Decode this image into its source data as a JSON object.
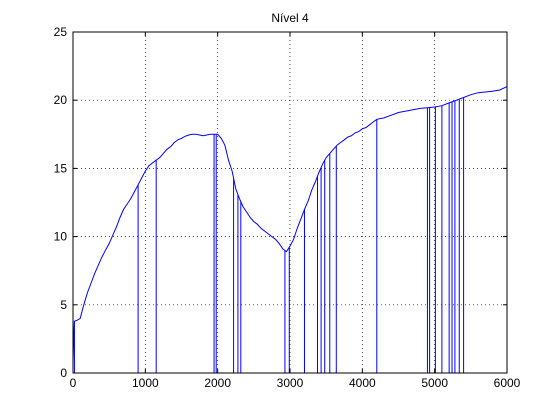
{
  "window": {
    "background": "#ffffff"
  },
  "chart_data": {
    "type": "line",
    "title": "Nível 4",
    "xlabel": "",
    "ylabel": "",
    "xlim": [
      0,
      6000
    ],
    "ylim": [
      0,
      25
    ],
    "xticks": [
      0,
      1000,
      2000,
      3000,
      4000,
      5000,
      6000
    ],
    "yticks": [
      0,
      5,
      10,
      15,
      20,
      25
    ],
    "grid": true,
    "grid_style": "dotted",
    "legend": "none",
    "colors": {
      "line": "#0000ff",
      "axes": "#000000",
      "grid": "#000000"
    },
    "series": [
      {
        "x": [
          0,
          10,
          20,
          50,
          100,
          150,
          200,
          250,
          300,
          350,
          400,
          450,
          500,
          550,
          600,
          650,
          700,
          750,
          800,
          850,
          900,
          950,
          1000,
          1050,
          1100,
          1150,
          1200,
          1250,
          1300,
          1350,
          1400,
          1450,
          1500,
          1550,
          1600,
          1650,
          1700,
          1750,
          1800,
          1850,
          1900,
          1950,
          2000,
          2050,
          2100,
          2150,
          2200,
          2250,
          2300,
          2350,
          2400,
          2450,
          2500,
          2550,
          2600,
          2650,
          2700,
          2750,
          2800,
          2850,
          2900,
          2950,
          3000,
          3050,
          3100,
          3150,
          3200,
          3250,
          3300,
          3350,
          3400,
          3450,
          3500,
          3550,
          3600,
          3650,
          3700,
          3750,
          3800,
          3850,
          3900,
          3950,
          4000,
          4050,
          4100,
          4150,
          4200,
          4300,
          4400,
          4500,
          4600,
          4700,
          4800,
          4900,
          5000,
          5100,
          5200,
          5300,
          5400,
          5500,
          5600,
          5700,
          5800,
          5900,
          6000
        ],
        "y": [
          0.8,
          2.5,
          3.8,
          3.85,
          4.0,
          5.0,
          5.9,
          6.6,
          7.3,
          7.9,
          8.5,
          9.0,
          9.5,
          10.1,
          10.7,
          11.4,
          12.0,
          12.4,
          12.8,
          13.3,
          13.8,
          14.3,
          14.8,
          15.2,
          15.4,
          15.6,
          15.8,
          16.1,
          16.4,
          16.6,
          16.9,
          17.1,
          17.2,
          17.35,
          17.45,
          17.5,
          17.5,
          17.45,
          17.4,
          17.45,
          17.5,
          17.5,
          17.5,
          17.2,
          16.7,
          15.6,
          14.8,
          13.5,
          12.8,
          12.2,
          11.8,
          11.4,
          11.1,
          10.9,
          10.6,
          10.4,
          10.2,
          10.0,
          9.8,
          9.5,
          9.1,
          8.9,
          9.3,
          9.8,
          10.6,
          11.3,
          12.0,
          12.6,
          13.4,
          14.0,
          14.7,
          15.3,
          15.8,
          16.1,
          16.4,
          16.7,
          16.9,
          17.1,
          17.3,
          17.4,
          17.6,
          17.7,
          17.9,
          18.0,
          18.2,
          18.4,
          18.6,
          18.7,
          18.9,
          19.1,
          19.2,
          19.3,
          19.4,
          19.45,
          19.5,
          19.6,
          19.8,
          20.0,
          20.2,
          20.4,
          20.55,
          20.6,
          20.65,
          20.75,
          21.0
        ]
      }
    ],
    "spike_x": [
      20,
      900,
      1150,
      1950,
      1980,
      2220,
      2280,
      2320,
      2930,
      2990,
      3200,
      3380,
      3430,
      3480,
      3550,
      3640,
      4200,
      4900,
      4930,
      5010,
      5100,
      5200,
      5240,
      5280,
      5340,
      5400
    ]
  }
}
